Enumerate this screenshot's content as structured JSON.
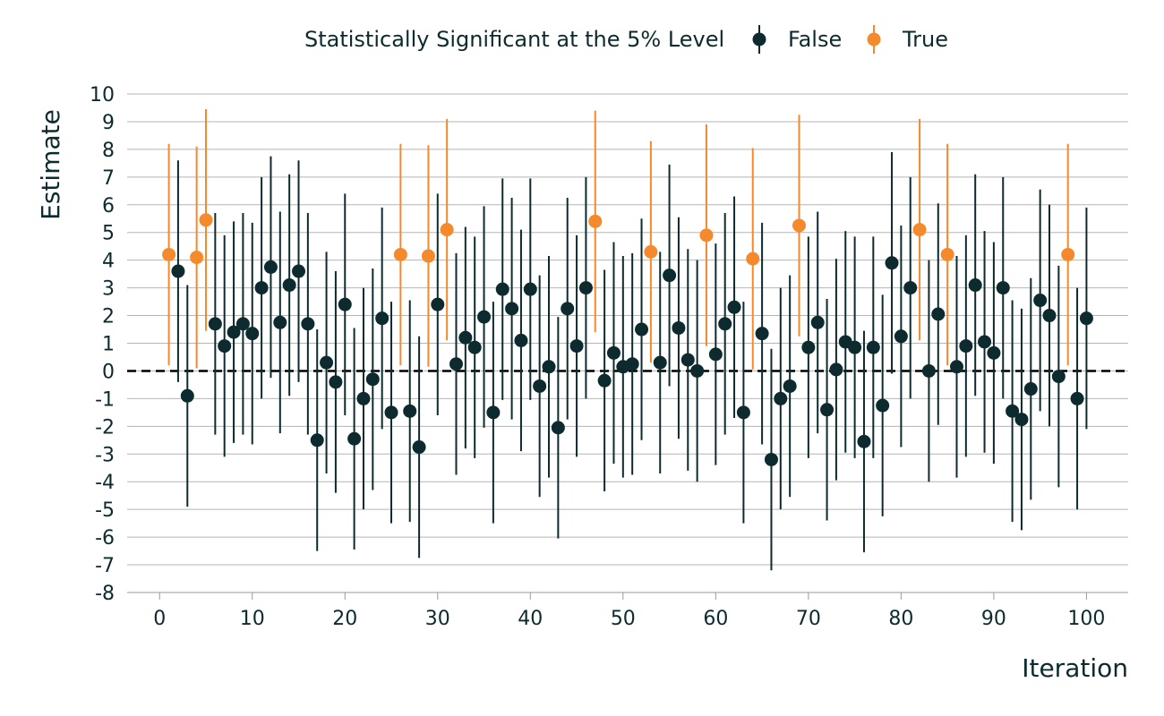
{
  "chart_data": {
    "type": "scatter",
    "xlabel": "Iteration",
    "ylabel": "Estimate",
    "xlim": [
      -3.5,
      104.5
    ],
    "ylim": [
      -8,
      10
    ],
    "x_ticks": [
      0,
      10,
      20,
      30,
      40,
      50,
      60,
      70,
      80,
      90,
      100
    ],
    "y_ticks": [
      -8,
      -7,
      -6,
      -5,
      -4,
      -3,
      -2,
      -1,
      0,
      1,
      2,
      3,
      4,
      5,
      6,
      7,
      8,
      9,
      10
    ],
    "grid": "horizontal",
    "reference_line": {
      "y": 0,
      "style": "dashed"
    },
    "legend": {
      "title": "Statistically Significant at the 5% Level",
      "position": "top",
      "entries": [
        {
          "label": "False",
          "color": "#0d2b2f"
        },
        {
          "label": "True",
          "color": "#f58a2c"
        }
      ]
    },
    "colors": {
      "False": "#0d2b2f",
      "True": "#f58a2c"
    },
    "points": [
      {
        "x": 1,
        "y": 4.2,
        "lo": 0.2,
        "hi": 8.2,
        "sig": true
      },
      {
        "x": 2,
        "y": 3.6,
        "lo": -0.4,
        "hi": 7.6,
        "sig": false
      },
      {
        "x": 3,
        "y": -0.9,
        "lo": -4.9,
        "hi": 3.1,
        "sig": false
      },
      {
        "x": 4,
        "y": 4.1,
        "lo": 0.1,
        "hi": 8.1,
        "sig": true
      },
      {
        "x": 5,
        "y": 5.45,
        "lo": 1.45,
        "hi": 9.45,
        "sig": true
      },
      {
        "x": 6,
        "y": 1.7,
        "lo": -2.3,
        "hi": 5.7,
        "sig": false
      },
      {
        "x": 7,
        "y": 0.9,
        "lo": -3.1,
        "hi": 4.9,
        "sig": false
      },
      {
        "x": 8,
        "y": 1.4,
        "lo": -2.6,
        "hi": 5.4,
        "sig": false
      },
      {
        "x": 9,
        "y": 1.7,
        "lo": -2.3,
        "hi": 5.7,
        "sig": false
      },
      {
        "x": 10,
        "y": 1.35,
        "lo": -2.65,
        "hi": 5.35,
        "sig": false
      },
      {
        "x": 11,
        "y": 3.0,
        "lo": -1.0,
        "hi": 7.0,
        "sig": false
      },
      {
        "x": 12,
        "y": 3.75,
        "lo": -0.25,
        "hi": 7.75,
        "sig": false
      },
      {
        "x": 13,
        "y": 1.75,
        "lo": -2.25,
        "hi": 5.75,
        "sig": false
      },
      {
        "x": 14,
        "y": 3.1,
        "lo": -0.9,
        "hi": 7.1,
        "sig": false
      },
      {
        "x": 15,
        "y": 3.6,
        "lo": -0.4,
        "hi": 7.6,
        "sig": false
      },
      {
        "x": 16,
        "y": 1.7,
        "lo": -2.3,
        "hi": 5.7,
        "sig": false
      },
      {
        "x": 17,
        "y": -2.5,
        "lo": -6.5,
        "hi": 1.5,
        "sig": false
      },
      {
        "x": 18,
        "y": 0.3,
        "lo": -3.7,
        "hi": 4.3,
        "sig": false
      },
      {
        "x": 19,
        "y": -0.4,
        "lo": -4.4,
        "hi": 3.6,
        "sig": false
      },
      {
        "x": 20,
        "y": 2.4,
        "lo": -1.6,
        "hi": 6.4,
        "sig": false
      },
      {
        "x": 21,
        "y": -2.45,
        "lo": -6.45,
        "hi": 1.55,
        "sig": false
      },
      {
        "x": 22,
        "y": -1.0,
        "lo": -5.0,
        "hi": 3.0,
        "sig": false
      },
      {
        "x": 23,
        "y": -0.3,
        "lo": -4.3,
        "hi": 3.7,
        "sig": false
      },
      {
        "x": 24,
        "y": 1.9,
        "lo": -2.1,
        "hi": 5.9,
        "sig": false
      },
      {
        "x": 25,
        "y": -1.5,
        "lo": -5.5,
        "hi": 2.5,
        "sig": false
      },
      {
        "x": 26,
        "y": 4.2,
        "lo": 0.2,
        "hi": 8.2,
        "sig": true
      },
      {
        "x": 27,
        "y": -1.45,
        "lo": -5.45,
        "hi": 2.55,
        "sig": false
      },
      {
        "x": 28,
        "y": -2.75,
        "lo": -6.75,
        "hi": 1.25,
        "sig": false
      },
      {
        "x": 29,
        "y": 4.15,
        "lo": 0.15,
        "hi": 8.15,
        "sig": true
      },
      {
        "x": 30,
        "y": 2.4,
        "lo": -1.6,
        "hi": 6.4,
        "sig": false
      },
      {
        "x": 31,
        "y": 5.1,
        "lo": 1.1,
        "hi": 9.1,
        "sig": true
      },
      {
        "x": 32,
        "y": 0.25,
        "lo": -3.75,
        "hi": 4.25,
        "sig": false
      },
      {
        "x": 33,
        "y": 1.2,
        "lo": -2.8,
        "hi": 5.2,
        "sig": false
      },
      {
        "x": 34,
        "y": 0.85,
        "lo": -3.15,
        "hi": 4.85,
        "sig": false
      },
      {
        "x": 35,
        "y": 1.95,
        "lo": -2.05,
        "hi": 5.95,
        "sig": false
      },
      {
        "x": 36,
        "y": -1.5,
        "lo": -5.5,
        "hi": 2.5,
        "sig": false
      },
      {
        "x": 37,
        "y": 2.95,
        "lo": -1.05,
        "hi": 6.95,
        "sig": false
      },
      {
        "x": 38,
        "y": 2.25,
        "lo": -1.75,
        "hi": 6.25,
        "sig": false
      },
      {
        "x": 39,
        "y": 1.1,
        "lo": -2.9,
        "hi": 5.1,
        "sig": false
      },
      {
        "x": 40,
        "y": 2.95,
        "lo": -1.05,
        "hi": 6.95,
        "sig": false
      },
      {
        "x": 41,
        "y": -0.55,
        "lo": -4.55,
        "hi": 3.45,
        "sig": false
      },
      {
        "x": 42,
        "y": 0.15,
        "lo": -3.85,
        "hi": 4.15,
        "sig": false
      },
      {
        "x": 43,
        "y": -2.05,
        "lo": -6.05,
        "hi": 1.95,
        "sig": false
      },
      {
        "x": 44,
        "y": 2.25,
        "lo": -1.75,
        "hi": 6.25,
        "sig": false
      },
      {
        "x": 45,
        "y": 0.9,
        "lo": -3.1,
        "hi": 4.9,
        "sig": false
      },
      {
        "x": 46,
        "y": 3.0,
        "lo": -1.0,
        "hi": 7.0,
        "sig": false
      },
      {
        "x": 47,
        "y": 5.4,
        "lo": 1.4,
        "hi": 9.4,
        "sig": true
      },
      {
        "x": 48,
        "y": -0.35,
        "lo": -4.35,
        "hi": 3.65,
        "sig": false
      },
      {
        "x": 49,
        "y": 0.65,
        "lo": -3.35,
        "hi": 4.65,
        "sig": false
      },
      {
        "x": 50,
        "y": 0.15,
        "lo": -3.85,
        "hi": 4.15,
        "sig": false
      },
      {
        "x": 51,
        "y": 0.25,
        "lo": -3.75,
        "hi": 4.25,
        "sig": false
      },
      {
        "x": 52,
        "y": 1.5,
        "lo": -2.5,
        "hi": 5.5,
        "sig": false
      },
      {
        "x": 53,
        "y": 4.3,
        "lo": 0.3,
        "hi": 8.3,
        "sig": true
      },
      {
        "x": 54,
        "y": 0.3,
        "lo": -3.7,
        "hi": 4.3,
        "sig": false
      },
      {
        "x": 55,
        "y": 3.45,
        "lo": -0.55,
        "hi": 7.45,
        "sig": false
      },
      {
        "x": 56,
        "y": 1.55,
        "lo": -2.45,
        "hi": 5.55,
        "sig": false
      },
      {
        "x": 57,
        "y": 0.4,
        "lo": -3.6,
        "hi": 4.4,
        "sig": false
      },
      {
        "x": 58,
        "y": 0.0,
        "lo": -4.0,
        "hi": 4.0,
        "sig": false
      },
      {
        "x": 59,
        "y": 4.9,
        "lo": 0.9,
        "hi": 8.9,
        "sig": true
      },
      {
        "x": 60,
        "y": 0.6,
        "lo": -3.4,
        "hi": 4.6,
        "sig": false
      },
      {
        "x": 61,
        "y": 1.7,
        "lo": -2.3,
        "hi": 5.7,
        "sig": false
      },
      {
        "x": 62,
        "y": 2.3,
        "lo": -1.7,
        "hi": 6.3,
        "sig": false
      },
      {
        "x": 63,
        "y": -1.5,
        "lo": -5.5,
        "hi": 2.5,
        "sig": false
      },
      {
        "x": 64,
        "y": 4.05,
        "lo": 0.05,
        "hi": 8.05,
        "sig": true
      },
      {
        "x": 65,
        "y": 1.35,
        "lo": -2.65,
        "hi": 5.35,
        "sig": false
      },
      {
        "x": 66,
        "y": -3.2,
        "lo": -7.2,
        "hi": 0.8,
        "sig": false
      },
      {
        "x": 67,
        "y": -1.0,
        "lo": -5.0,
        "hi": 3.0,
        "sig": false
      },
      {
        "x": 68,
        "y": -0.55,
        "lo": -4.55,
        "hi": 3.45,
        "sig": false
      },
      {
        "x": 69,
        "y": 5.25,
        "lo": 1.25,
        "hi": 9.25,
        "sig": true
      },
      {
        "x": 70,
        "y": 0.85,
        "lo": -3.15,
        "hi": 4.85,
        "sig": false
      },
      {
        "x": 71,
        "y": 1.75,
        "lo": -2.25,
        "hi": 5.75,
        "sig": false
      },
      {
        "x": 72,
        "y": -1.4,
        "lo": -5.4,
        "hi": 2.6,
        "sig": false
      },
      {
        "x": 73,
        "y": 0.05,
        "lo": -3.95,
        "hi": 4.05,
        "sig": false
      },
      {
        "x": 74,
        "y": 1.05,
        "lo": -2.95,
        "hi": 5.05,
        "sig": false
      },
      {
        "x": 75,
        "y": 0.85,
        "lo": -3.15,
        "hi": 4.85,
        "sig": false
      },
      {
        "x": 76,
        "y": -2.55,
        "lo": -6.55,
        "hi": 1.45,
        "sig": false
      },
      {
        "x": 77,
        "y": 0.85,
        "lo": -3.15,
        "hi": 4.85,
        "sig": false
      },
      {
        "x": 78,
        "y": -1.25,
        "lo": -5.25,
        "hi": 2.75,
        "sig": false
      },
      {
        "x": 79,
        "y": 3.9,
        "lo": -0.1,
        "hi": 7.9,
        "sig": false
      },
      {
        "x": 80,
        "y": 1.25,
        "lo": -2.75,
        "hi": 5.25,
        "sig": false
      },
      {
        "x": 81,
        "y": 3.0,
        "lo": -1.0,
        "hi": 7.0,
        "sig": false
      },
      {
        "x": 82,
        "y": 5.1,
        "lo": 1.1,
        "hi": 9.1,
        "sig": true
      },
      {
        "x": 83,
        "y": 0.0,
        "lo": -4.0,
        "hi": 4.0,
        "sig": false
      },
      {
        "x": 84,
        "y": 2.05,
        "lo": -1.95,
        "hi": 6.05,
        "sig": false
      },
      {
        "x": 85,
        "y": 4.2,
        "lo": 0.2,
        "hi": 8.2,
        "sig": true
      },
      {
        "x": 86,
        "y": 0.15,
        "lo": -3.85,
        "hi": 4.15,
        "sig": false
      },
      {
        "x": 87,
        "y": 0.9,
        "lo": -3.1,
        "hi": 4.9,
        "sig": false
      },
      {
        "x": 88,
        "y": 3.1,
        "lo": -0.9,
        "hi": 7.1,
        "sig": false
      },
      {
        "x": 89,
        "y": 1.05,
        "lo": -2.95,
        "hi": 5.05,
        "sig": false
      },
      {
        "x": 90,
        "y": 0.65,
        "lo": -3.35,
        "hi": 4.65,
        "sig": false
      },
      {
        "x": 91,
        "y": 3.0,
        "lo": -1.0,
        "hi": 7.0,
        "sig": false
      },
      {
        "x": 92,
        "y": -1.45,
        "lo": -5.45,
        "hi": 2.55,
        "sig": false
      },
      {
        "x": 93,
        "y": -1.75,
        "lo": -5.75,
        "hi": 2.25,
        "sig": false
      },
      {
        "x": 94,
        "y": -0.65,
        "lo": -4.65,
        "hi": 3.35,
        "sig": false
      },
      {
        "x": 95,
        "y": 2.55,
        "lo": -1.45,
        "hi": 6.55,
        "sig": false
      },
      {
        "x": 96,
        "y": 2.0,
        "lo": -2.0,
        "hi": 6.0,
        "sig": false
      },
      {
        "x": 97,
        "y": -0.2,
        "lo": -4.2,
        "hi": 3.8,
        "sig": false
      },
      {
        "x": 98,
        "y": 4.2,
        "lo": 0.2,
        "hi": 8.2,
        "sig": true
      },
      {
        "x": 99,
        "y": -1.0,
        "lo": -5.0,
        "hi": 3.0,
        "sig": false
      },
      {
        "x": 100,
        "y": 1.9,
        "lo": -2.1,
        "hi": 5.9,
        "sig": false
      }
    ]
  }
}
